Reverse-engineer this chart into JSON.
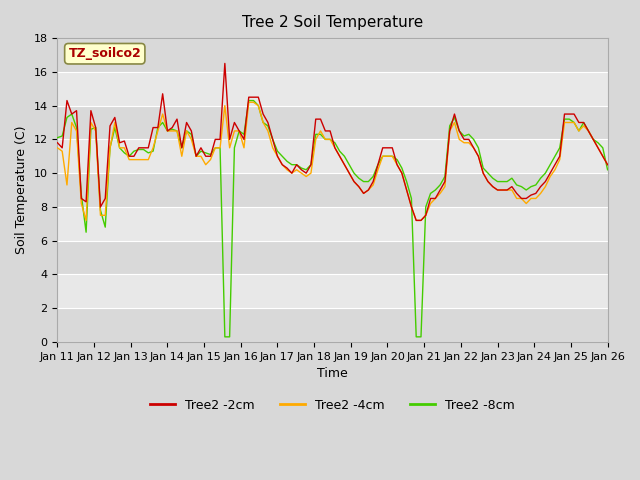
{
  "title": "Tree 2 Soil Temperature",
  "xlabel": "Time",
  "ylabel": "Soil Temperature (C)",
  "watermark_text": "TZ_soilco2",
  "xlim_start": 0,
  "xlim_end": 15,
  "ylim": [
    0,
    18
  ],
  "yticks": [
    0,
    2,
    4,
    6,
    8,
    10,
    12,
    14,
    16,
    18
  ],
  "x_labels": [
    "Jan 11",
    "Jan 12",
    "Jan 13",
    "Jan 14",
    "Jan 15",
    "Jan 16",
    "Jan 17",
    "Jan 18",
    "Jan 19",
    "Jan 20",
    "Jan 21",
    "Jan 22",
    "Jan 23",
    "Jan 24",
    "Jan 25",
    "Jan 26"
  ],
  "bg_color": "#e8e8e8",
  "plot_bg": "#f0f0f0",
  "line_2cm_color": "#cc0000",
  "line_4cm_color": "#ffaa00",
  "line_8cm_color": "#44cc00",
  "tree2_2cm": [
    11.8,
    11.5,
    14.3,
    13.5,
    13.7,
    8.5,
    8.3,
    13.7,
    12.7,
    8.0,
    8.5,
    12.8,
    13.3,
    11.8,
    11.9,
    11.0,
    11.0,
    11.5,
    11.5,
    11.5,
    12.7,
    12.7,
    14.7,
    12.5,
    12.7,
    13.2,
    11.5,
    13.0,
    12.5,
    11.0,
    11.5,
    11.0,
    11.0,
    12.0,
    12.0,
    16.5,
    12.0,
    13.0,
    12.5,
    12.0,
    14.5,
    14.5,
    14.5,
    13.5,
    13.0,
    12.0,
    11.0,
    10.5,
    10.3,
    10.0,
    10.5,
    10.2,
    10.0,
    10.5,
    13.2,
    13.2,
    12.5,
    12.5,
    11.5,
    11.0,
    10.5,
    10.0,
    9.5,
    9.2,
    8.8,
    9.0,
    9.5,
    10.5,
    11.5,
    11.5,
    11.5,
    10.5,
    10.0,
    9.0,
    8.0,
    7.2,
    7.2,
    7.5,
    8.5,
    8.5,
    9.0,
    9.5,
    12.5,
    13.5,
    12.5,
    12.0,
    12.0,
    11.5,
    11.0,
    10.0,
    9.5,
    9.2,
    9.0,
    9.0,
    9.0,
    9.2,
    8.8,
    8.5,
    8.5,
    8.7,
    8.8,
    9.2,
    9.5,
    10.0,
    10.5,
    11.0,
    13.5,
    13.5,
    13.5,
    13.0,
    13.0,
    12.5,
    12.0,
    11.5,
    11.0,
    10.5
  ],
  "tree2_4cm": [
    11.5,
    11.3,
    9.3,
    13.0,
    12.5,
    8.2,
    7.2,
    13.0,
    12.5,
    7.5,
    7.5,
    11.5,
    13.0,
    11.5,
    11.5,
    10.8,
    10.8,
    10.8,
    10.8,
    10.8,
    11.5,
    12.5,
    13.5,
    12.5,
    12.5,
    12.5,
    11.0,
    12.5,
    12.0,
    11.0,
    11.0,
    10.5,
    10.8,
    11.5,
    11.5,
    14.0,
    11.5,
    12.5,
    12.5,
    11.5,
    14.2,
    14.2,
    14.0,
    13.0,
    12.5,
    11.5,
    11.0,
    10.5,
    10.2,
    10.0,
    10.2,
    10.0,
    9.8,
    10.0,
    12.0,
    12.5,
    12.0,
    12.0,
    11.5,
    11.0,
    10.5,
    10.0,
    9.5,
    9.2,
    8.8,
    9.0,
    9.3,
    10.2,
    11.0,
    11.0,
    11.0,
    10.5,
    10.0,
    9.0,
    8.0,
    7.2,
    7.2,
    7.5,
    8.2,
    8.5,
    8.8,
    9.2,
    12.5,
    13.0,
    12.0,
    11.8,
    11.8,
    11.5,
    11.0,
    10.0,
    9.5,
    9.2,
    9.0,
    9.0,
    9.0,
    9.0,
    8.5,
    8.5,
    8.2,
    8.5,
    8.5,
    8.8,
    9.2,
    9.8,
    10.2,
    10.8,
    13.0,
    13.0,
    13.0,
    12.5,
    12.8,
    12.5,
    12.0,
    11.5,
    11.0,
    10.5
  ],
  "tree2_8cm": [
    12.1,
    12.2,
    13.3,
    13.5,
    12.7,
    8.7,
    6.5,
    12.6,
    12.7,
    7.8,
    6.8,
    11.5,
    12.7,
    11.5,
    11.2,
    11.0,
    11.3,
    11.4,
    11.4,
    11.2,
    11.3,
    12.7,
    13.0,
    12.5,
    12.6,
    12.5,
    11.5,
    12.5,
    12.3,
    11.0,
    11.3,
    11.2,
    11.1,
    11.5,
    11.5,
    0.3,
    0.3,
    11.5,
    12.5,
    12.3,
    14.3,
    14.3,
    14.0,
    13.0,
    12.8,
    12.0,
    11.3,
    11.0,
    10.7,
    10.5,
    10.5,
    10.3,
    10.2,
    10.5,
    12.3,
    12.3,
    12.0,
    12.0,
    11.8,
    11.3,
    11.0,
    10.5,
    10.0,
    9.7,
    9.5,
    9.5,
    9.8,
    10.5,
    11.0,
    11.0,
    11.0,
    10.8,
    10.3,
    9.5,
    8.5,
    0.3,
    0.3,
    8.0,
    8.8,
    9.0,
    9.3,
    9.8,
    12.8,
    13.3,
    12.5,
    12.2,
    12.3,
    12.0,
    11.5,
    10.3,
    10.0,
    9.7,
    9.5,
    9.5,
    9.5,
    9.7,
    9.3,
    9.2,
    9.0,
    9.2,
    9.3,
    9.7,
    10.0,
    10.5,
    11.0,
    11.5,
    13.2,
    13.2,
    13.0,
    12.5,
    13.0,
    12.5,
    12.0,
    11.8,
    11.5,
    10.2
  ]
}
